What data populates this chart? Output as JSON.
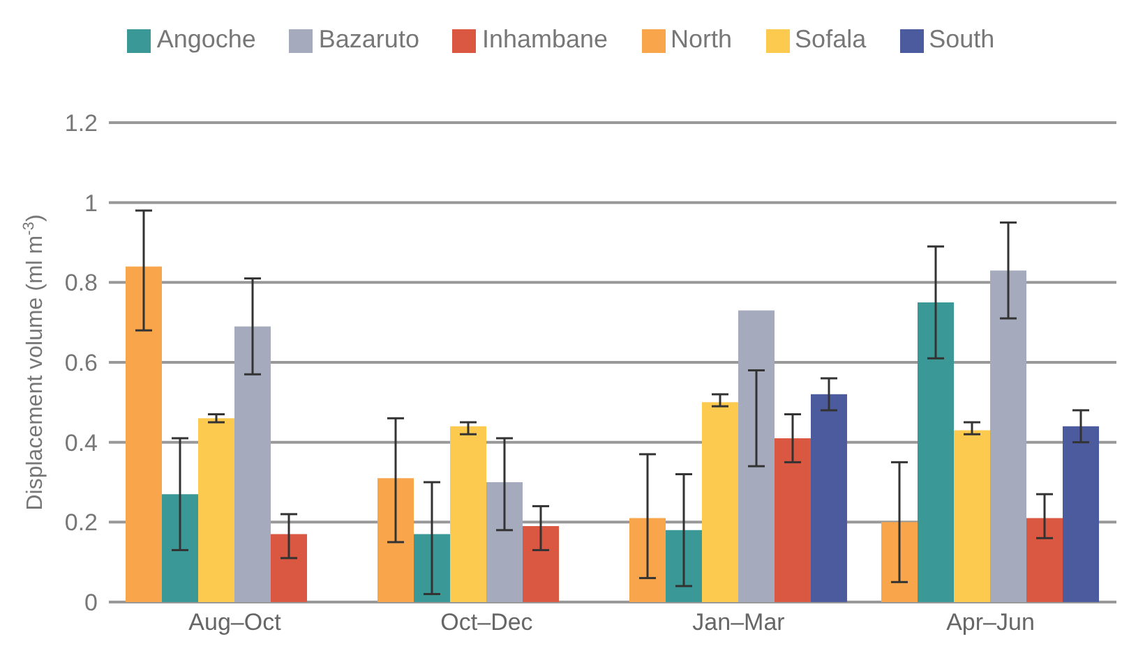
{
  "chart_data": {
    "type": "bar",
    "categories": [
      "Aug–Oct",
      "Oct–Dec",
      "Jan–Mar",
      "Apr–Jun"
    ],
    "ylabel": "Displacement volume (ml m$^{-3}$)",
    "ylim": [
      0,
      1.2
    ],
    "yticks": [
      0,
      0.2,
      0.4,
      0.6,
      0.8,
      1,
      1.2
    ],
    "grid": "y",
    "legend": "top",
    "series": [
      {
        "name": "North",
        "color": "#f9a54b",
        "values": [
          0.84,
          0.31,
          0.21,
          0.2
        ],
        "errors": [
          [
            0.68,
            0.98
          ],
          [
            0.15,
            0.46
          ],
          [
            0.06,
            0.37
          ],
          [
            0.05,
            0.35
          ]
        ]
      },
      {
        "name": "Angoche",
        "color": "#3a9896",
        "values": [
          0.27,
          0.17,
          0.18,
          0.75
        ],
        "errors": [
          [
            0.13,
            0.41
          ],
          [
            0.02,
            0.3
          ],
          [
            0.04,
            0.32
          ],
          [
            0.61,
            0.89
          ]
        ]
      },
      {
        "name": "Sofala",
        "color": "#fdca50",
        "values": [
          0.46,
          0.44,
          0.5,
          0.43
        ],
        "errors": [
          [
            0.45,
            0.47
          ],
          [
            0.42,
            0.45
          ],
          [
            0.49,
            0.52
          ],
          [
            0.42,
            0.45
          ]
        ]
      },
      {
        "name": "Bazaruto",
        "color": "#a5abbc",
        "values": [
          0.69,
          0.3,
          0.73,
          0.83
        ],
        "errors": [
          [
            0.57,
            0.81
          ],
          [
            0.18,
            0.41
          ],
          [
            0.34,
            0.58
          ],
          [
            0.71,
            0.95
          ]
        ]
      },
      {
        "name": "Inhambane",
        "color": "#da5842",
        "values": [
          0.17,
          0.19,
          0.41,
          0.21
        ],
        "errors": [
          [
            0.11,
            0.22
          ],
          [
            0.13,
            0.24
          ],
          [
            0.35,
            0.47
          ],
          [
            0.16,
            0.27
          ]
        ]
      },
      {
        "name": "South",
        "color": "#4c5b9e",
        "values": [
          null,
          null,
          0.52,
          0.44
        ],
        "errors": [
          null,
          null,
          [
            0.48,
            0.56
          ],
          [
            0.4,
            0.48
          ]
        ]
      }
    ]
  }
}
